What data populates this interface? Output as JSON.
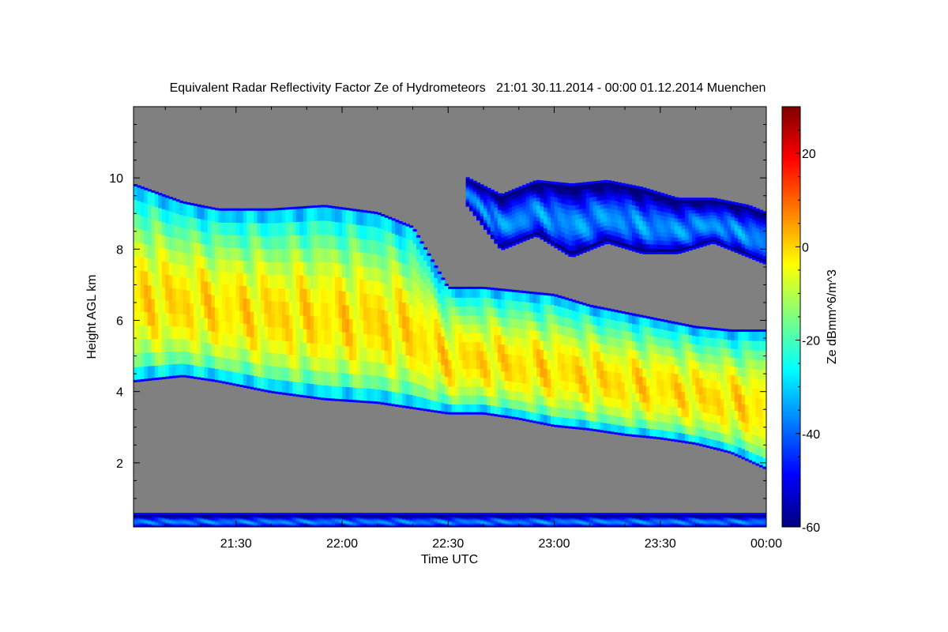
{
  "chart_data": {
    "type": "heatmap",
    "title": "Equivalent Radar Reflectivity Factor Ze of Hydrometeors   21:01 30.11.2014 - 00:00 01.12.2014 Muenchen",
    "xlabel": "Time UTC",
    "ylabel": "Height AGL km",
    "colorbar_label": "Ze dBmm^6/m^3",
    "x_unit": "minutes after 21:00 UTC",
    "xlim": [
      1,
      180
    ],
    "ylim": [
      0.2,
      12
    ],
    "x_ticks": [
      {
        "value": 30,
        "label": "21:30"
      },
      {
        "value": 60,
        "label": "22:00"
      },
      {
        "value": 90,
        "label": "22:30"
      },
      {
        "value": 120,
        "label": "23:00"
      },
      {
        "value": 150,
        "label": "23:30"
      },
      {
        "value": 180,
        "label": "00:00"
      }
    ],
    "y_ticks": [
      {
        "value": 2,
        "label": "2"
      },
      {
        "value": 4,
        "label": "4"
      },
      {
        "value": 6,
        "label": "6"
      },
      {
        "value": 8,
        "label": "8"
      },
      {
        "value": 10,
        "label": "10"
      }
    ],
    "colorbar_range": [
      -60,
      30
    ],
    "colorbar_ticks": [
      {
        "value": -60,
        "label": "-60"
      },
      {
        "value": -40,
        "label": "-40"
      },
      {
        "value": -20,
        "label": "-20"
      },
      {
        "value": 0,
        "label": "0"
      },
      {
        "value": 20,
        "label": "20"
      }
    ],
    "background_color": "#808080",
    "colormap": [
      "#00007f",
      "#0000ff",
      "#007fff",
      "#00ffff",
      "#7fff7f",
      "#ffff00",
      "#ff7f00",
      "#ff0000",
      "#7f0000"
    ],
    "regions": [
      {
        "name": "main precipitation layer",
        "time": [
          1,
          15,
          25,
          40,
          55,
          70,
          80,
          90,
          100,
          110,
          120,
          130,
          140,
          150,
          160,
          170,
          180
        ],
        "base_km": [
          4.3,
          4.45,
          4.3,
          4.0,
          3.8,
          3.7,
          3.55,
          3.4,
          3.4,
          3.25,
          3.05,
          2.95,
          2.8,
          2.7,
          2.55,
          2.3,
          1.85
        ],
        "top_km": [
          9.8,
          9.3,
          9.1,
          9.1,
          9.2,
          9.0,
          8.6,
          6.9,
          6.9,
          6.8,
          6.7,
          6.4,
          6.2,
          6.0,
          5.8,
          5.7,
          5.7
        ],
        "peak_ze": 5
      },
      {
        "name": "upper cloud layer",
        "time": [
          95,
          105,
          115,
          125,
          135,
          145,
          155,
          165,
          175,
          180
        ],
        "base_km": [
          9.3,
          8.0,
          8.4,
          7.8,
          8.2,
          7.9,
          7.9,
          8.2,
          7.8,
          7.6
        ],
        "top_km": [
          10.0,
          9.5,
          9.9,
          9.8,
          9.9,
          9.7,
          9.4,
          9.4,
          9.2,
          9.0
        ],
        "peak_ze": -30
      },
      {
        "name": "near-surface clutter",
        "time": [
          1,
          180
        ],
        "base_km": [
          0.2,
          0.2
        ],
        "top_km": [
          0.55,
          0.55
        ],
        "peak_ze": -32
      }
    ]
  }
}
